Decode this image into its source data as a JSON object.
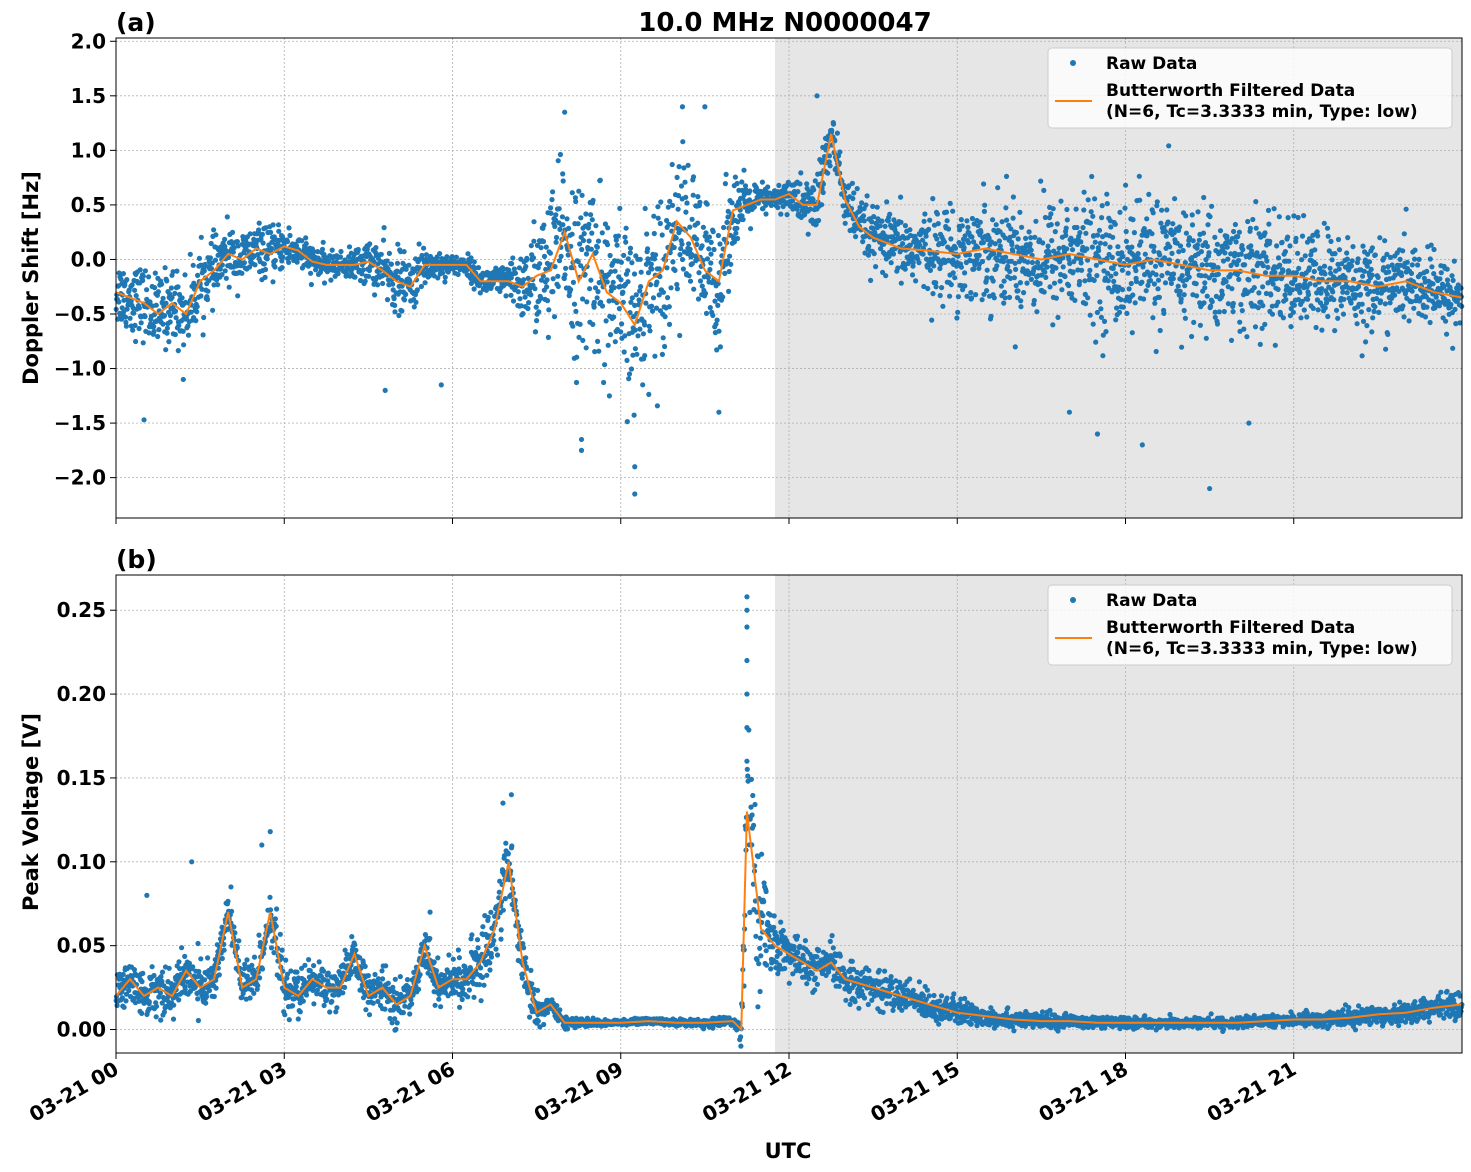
{
  "figure": {
    "title": "10.0 MHz N0000047",
    "xlabel": "UTC",
    "x_ticks": [
      "03-21 00",
      "03-21 03",
      "03-21 06",
      "03-21 09",
      "03-21 12",
      "03-21 15",
      "03-21 18",
      "03-21 21"
    ],
    "colors": {
      "raw": "#1f77b4",
      "filtered": "#ff7f0e",
      "shade": "#e6e6e6",
      "grid": "#b0b0b0"
    }
  },
  "chart_data": [
    {
      "type": "scatter",
      "panel_label": "(a)",
      "ylabel": "Doppler Shift [Hz]",
      "y_ticks": [
        "2.0",
        "1.5",
        "1.0",
        "0.5",
        "0.0",
        "−0.5",
        "−1.0",
        "−1.5",
        "−2.0"
      ],
      "y_tick_values": [
        2.0,
        1.5,
        1.0,
        0.5,
        0.0,
        -0.5,
        -1.0,
        -1.5,
        -2.0
      ],
      "xlim_hours": [
        0,
        24
      ],
      "ylim": [
        -2.37,
        2.03
      ],
      "grid": true,
      "legend_position": "top-right",
      "shaded_interval_hours": [
        11.75,
        24
      ],
      "legend": {
        "raw": "Raw Data",
        "filtered_line1": "Butterworth Filtered Data",
        "filtered_line2": "(N=6, Tc=3.3333 min, Type: low)"
      },
      "series": [
        {
          "name": "Butterworth Filtered Data",
          "kind": "line",
          "x_hours": [
            0,
            0.25,
            0.5,
            0.75,
            1.0,
            1.25,
            1.5,
            1.75,
            2.0,
            2.25,
            2.5,
            2.75,
            3.0,
            3.25,
            3.5,
            3.75,
            4.0,
            4.25,
            4.5,
            4.75,
            5.0,
            5.25,
            5.5,
            5.75,
            6.0,
            6.25,
            6.5,
            6.75,
            7.0,
            7.25,
            7.5,
            7.75,
            8.0,
            8.25,
            8.5,
            8.75,
            9.0,
            9.25,
            9.5,
            9.75,
            10.0,
            10.25,
            10.5,
            10.75,
            11.0,
            11.25,
            11.5,
            11.75,
            12.0,
            12.25,
            12.5,
            12.75,
            13.0,
            13.25,
            13.5,
            13.75,
            14.0,
            14.5,
            15.0,
            15.5,
            16.0,
            16.5,
            17.0,
            17.5,
            18.0,
            18.5,
            19.0,
            19.5,
            20.0,
            20.5,
            21.0,
            21.5,
            22.0,
            22.5,
            23.0,
            23.5,
            24.0
          ],
          "y": [
            -0.3,
            -0.35,
            -0.4,
            -0.5,
            -0.4,
            -0.5,
            -0.2,
            -0.1,
            0.05,
            0.0,
            0.1,
            0.05,
            0.12,
            0.08,
            -0.02,
            -0.05,
            -0.05,
            -0.05,
            -0.02,
            -0.1,
            -0.2,
            -0.25,
            -0.05,
            -0.05,
            -0.05,
            -0.05,
            -0.2,
            -0.2,
            -0.2,
            -0.25,
            -0.15,
            -0.1,
            0.25,
            -0.2,
            0.05,
            -0.3,
            -0.4,
            -0.6,
            -0.2,
            -0.1,
            0.35,
            0.2,
            -0.1,
            -0.2,
            0.45,
            0.5,
            0.55,
            0.55,
            0.6,
            0.5,
            0.5,
            1.15,
            0.55,
            0.3,
            0.2,
            0.15,
            0.1,
            0.08,
            0.05,
            0.1,
            0.05,
            0.0,
            0.05,
            0.0,
            -0.05,
            0.0,
            -0.05,
            -0.1,
            -0.1,
            -0.15,
            -0.15,
            -0.2,
            -0.2,
            -0.25,
            -0.2,
            -0.3,
            -0.35
          ]
        },
        {
          "name": "Raw Data",
          "kind": "points",
          "spread_x_hours": [
            0,
            1,
            2,
            3,
            4,
            5,
            6,
            7,
            7.75,
            8.5,
            9.25,
            10,
            10.75,
            11.25,
            11.75,
            12.5,
            13,
            14,
            15,
            16,
            17,
            18,
            19,
            20,
            21,
            22,
            23,
            24
          ],
          "spread_hz": [
            0.3,
            0.35,
            0.25,
            0.2,
            0.1,
            0.3,
            0.08,
            0.15,
            0.7,
            0.8,
            0.75,
            0.7,
            0.6,
            0.2,
            0.1,
            0.3,
            0.25,
            0.3,
            0.45,
            0.5,
            0.55,
            0.6,
            0.6,
            0.55,
            0.5,
            0.45,
            0.35,
            0.3
          ],
          "outliers": [
            [
              0.5,
              -1.47
            ],
            [
              1.2,
              -1.1
            ],
            [
              4.8,
              -1.2
            ],
            [
              5.8,
              -1.15
            ],
            [
              8.3,
              -1.65
            ],
            [
              8.3,
              -1.75
            ],
            [
              9.25,
              -1.9
            ],
            [
              9.25,
              -2.15
            ],
            [
              10.1,
              1.4
            ],
            [
              10.75,
              -1.4
            ],
            [
              12.5,
              1.5
            ],
            [
              17.0,
              -1.4
            ],
            [
              17.5,
              -1.6
            ],
            [
              18.3,
              -1.7
            ],
            [
              19.5,
              -2.1
            ],
            [
              20.2,
              -1.5
            ],
            [
              8.0,
              1.35
            ],
            [
              10.5,
              1.4
            ]
          ]
        }
      ]
    },
    {
      "type": "scatter",
      "panel_label": "(b)",
      "ylabel": "Peak Voltage [V]",
      "y_ticks": [
        "0.25",
        "0.20",
        "0.15",
        "0.10",
        "0.05",
        "0.00"
      ],
      "y_tick_values": [
        0.25,
        0.2,
        0.15,
        0.1,
        0.05,
        0.0
      ],
      "xlim_hours": [
        0,
        24
      ],
      "ylim": [
        -0.014,
        0.271
      ],
      "grid": true,
      "legend_position": "top-right",
      "shaded_interval_hours": [
        11.75,
        24
      ],
      "legend": {
        "raw": "Raw Data",
        "filtered_line1": "Butterworth Filtered Data",
        "filtered_line2": "(N=6, Tc=3.3333 min, Type: low)"
      },
      "series": [
        {
          "name": "Butterworth Filtered Data",
          "kind": "line",
          "x_hours": [
            0,
            0.25,
            0.5,
            0.75,
            1.0,
            1.25,
            1.5,
            1.75,
            2.0,
            2.25,
            2.5,
            2.75,
            3.0,
            3.25,
            3.5,
            3.75,
            4.0,
            4.25,
            4.5,
            4.75,
            5.0,
            5.25,
            5.5,
            5.75,
            6.0,
            6.25,
            6.5,
            6.75,
            7.0,
            7.25,
            7.5,
            7.75,
            8.0,
            8.5,
            9.0,
            9.5,
            10.0,
            10.5,
            11.0,
            11.15,
            11.25,
            11.5,
            11.75,
            12.0,
            12.25,
            12.5,
            12.75,
            13.0,
            13.5,
            14.0,
            14.5,
            15.0,
            15.5,
            16.0,
            16.5,
            17.0,
            17.5,
            18.0,
            18.5,
            19.0,
            19.5,
            20.0,
            20.5,
            21.0,
            21.5,
            22.0,
            22.5,
            23.0,
            23.5,
            24.0
          ],
          "y": [
            0.02,
            0.03,
            0.02,
            0.025,
            0.02,
            0.035,
            0.025,
            0.03,
            0.07,
            0.025,
            0.03,
            0.07,
            0.025,
            0.02,
            0.03,
            0.025,
            0.025,
            0.045,
            0.02,
            0.025,
            0.015,
            0.02,
            0.05,
            0.025,
            0.03,
            0.03,
            0.04,
            0.06,
            0.1,
            0.04,
            0.01,
            0.015,
            0.004,
            0.004,
            0.004,
            0.005,
            0.004,
            0.004,
            0.005,
            0.0,
            0.13,
            0.06,
            0.05,
            0.045,
            0.04,
            0.035,
            0.04,
            0.03,
            0.025,
            0.02,
            0.015,
            0.01,
            0.008,
            0.006,
            0.005,
            0.005,
            0.004,
            0.004,
            0.004,
            0.004,
            0.004,
            0.004,
            0.005,
            0.006,
            0.006,
            0.007,
            0.009,
            0.01,
            0.013,
            0.015
          ]
        },
        {
          "name": "Raw Data",
          "kind": "points",
          "spread_x_hours": [
            0,
            1,
            2,
            3,
            4,
            5,
            6,
            7,
            7.75,
            8.5,
            10,
            11.1,
            11.25,
            11.75,
            12.5,
            13,
            14,
            15,
            16,
            18,
            20,
            22,
            24
          ],
          "spread_v": [
            0.012,
            0.015,
            0.015,
            0.015,
            0.012,
            0.012,
            0.012,
            0.025,
            0.004,
            0.002,
            0.002,
            0.003,
            0.06,
            0.015,
            0.012,
            0.012,
            0.01,
            0.008,
            0.005,
            0.003,
            0.003,
            0.005,
            0.008
          ],
          "outliers": [
            [
              11.25,
              0.258
            ],
            [
              11.25,
              0.25
            ],
            [
              11.25,
              0.24
            ],
            [
              11.25,
              0.22
            ],
            [
              11.25,
              0.2
            ],
            [
              11.25,
              0.18
            ],
            [
              11.25,
              0.16
            ],
            [
              7.05,
              0.14
            ],
            [
              6.9,
              0.135
            ],
            [
              2.75,
              0.118
            ],
            [
              1.35,
              0.1
            ],
            [
              2.6,
              0.11
            ],
            [
              5.6,
              0.07
            ],
            [
              2.05,
              0.085
            ],
            [
              0.55,
              0.08
            ]
          ]
        }
      ]
    }
  ]
}
